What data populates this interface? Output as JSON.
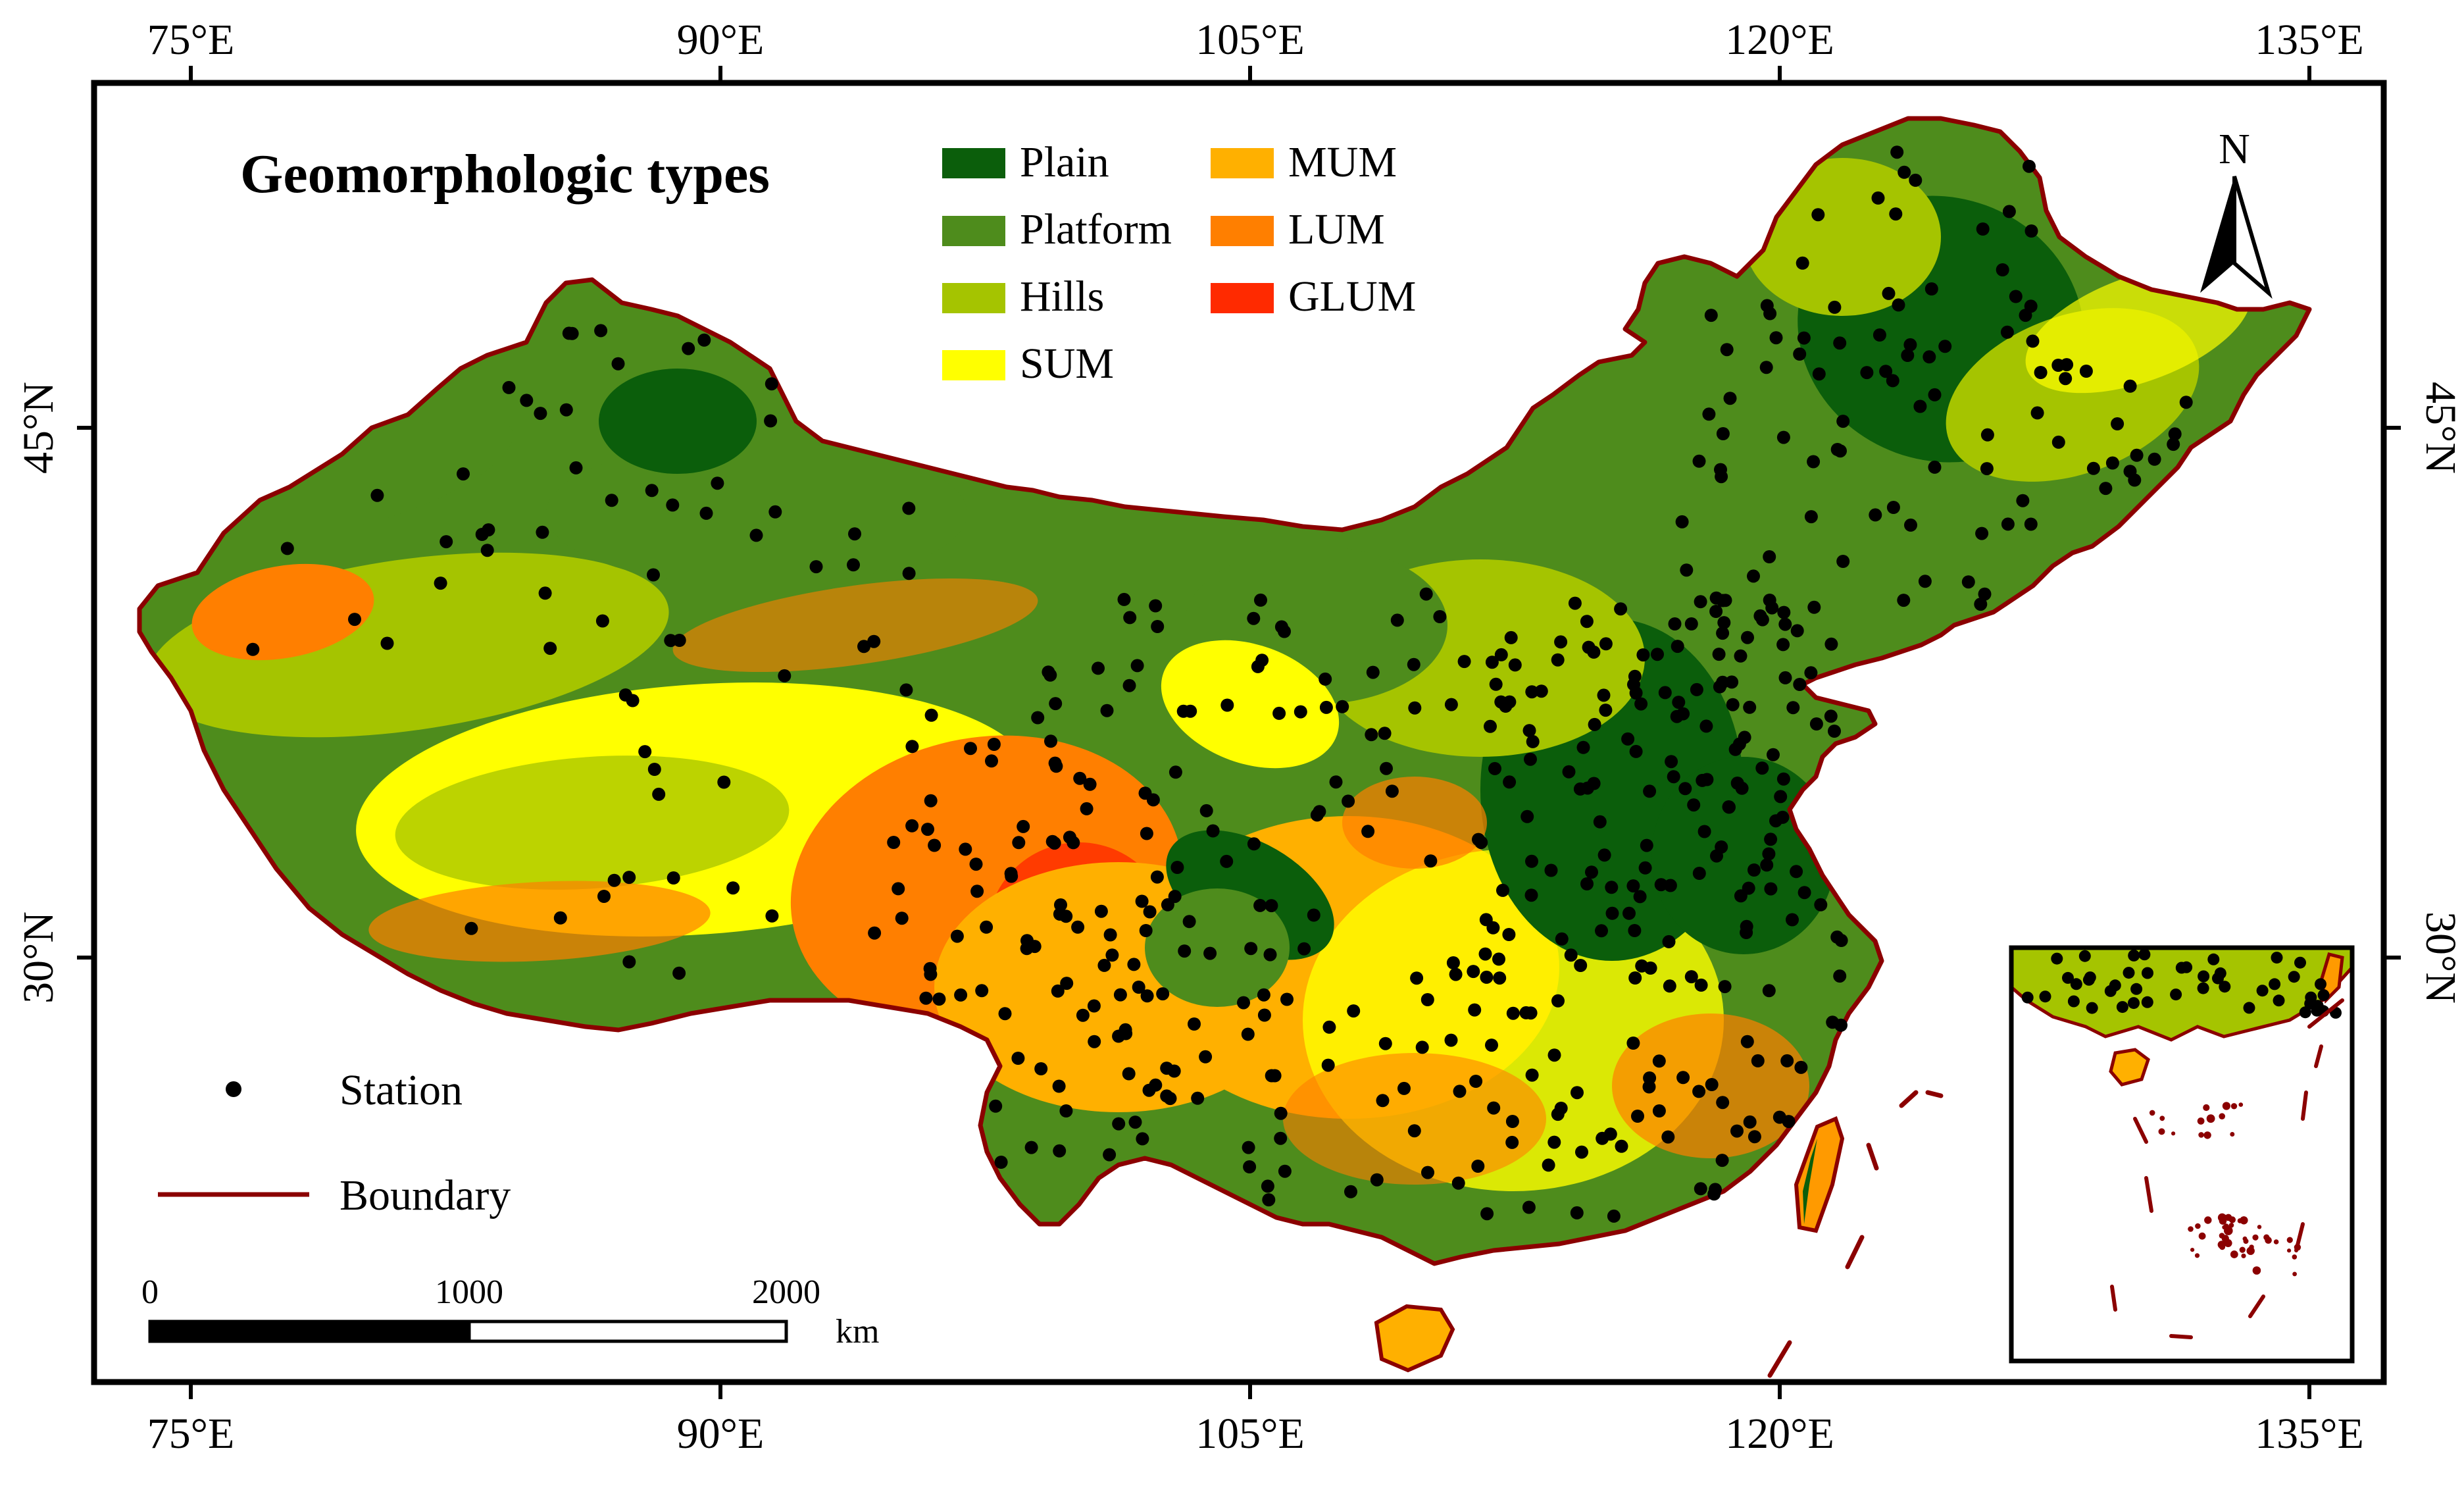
{
  "map": {
    "title": "Geomorphologic types",
    "north_label": "N",
    "lon_ticks": [
      "75°E",
      "90°E",
      "105°E",
      "120°E",
      "135°E"
    ],
    "lat_ticks": [
      "45°N",
      "30°N"
    ],
    "legend": [
      {
        "label": "Plain",
        "color": "#0b5e0b"
      },
      {
        "label": "Platform",
        "color": "#4e8c1c"
      },
      {
        "label": "Hills",
        "color": "#a5c400"
      },
      {
        "label": "SUM",
        "color": "#ffff00"
      },
      {
        "label": "MUM",
        "color": "#ffb000"
      },
      {
        "label": "LUM",
        "color": "#ff7f00"
      },
      {
        "label": "GLUM",
        "color": "#ff2a00"
      }
    ],
    "symbols": {
      "station_label": "Station",
      "boundary_label": "Boundary",
      "boundary_color": "#8b0000"
    },
    "scale_bar": {
      "ticks": [
        "0",
        "1000",
        "2000"
      ],
      "unit": "km"
    }
  }
}
